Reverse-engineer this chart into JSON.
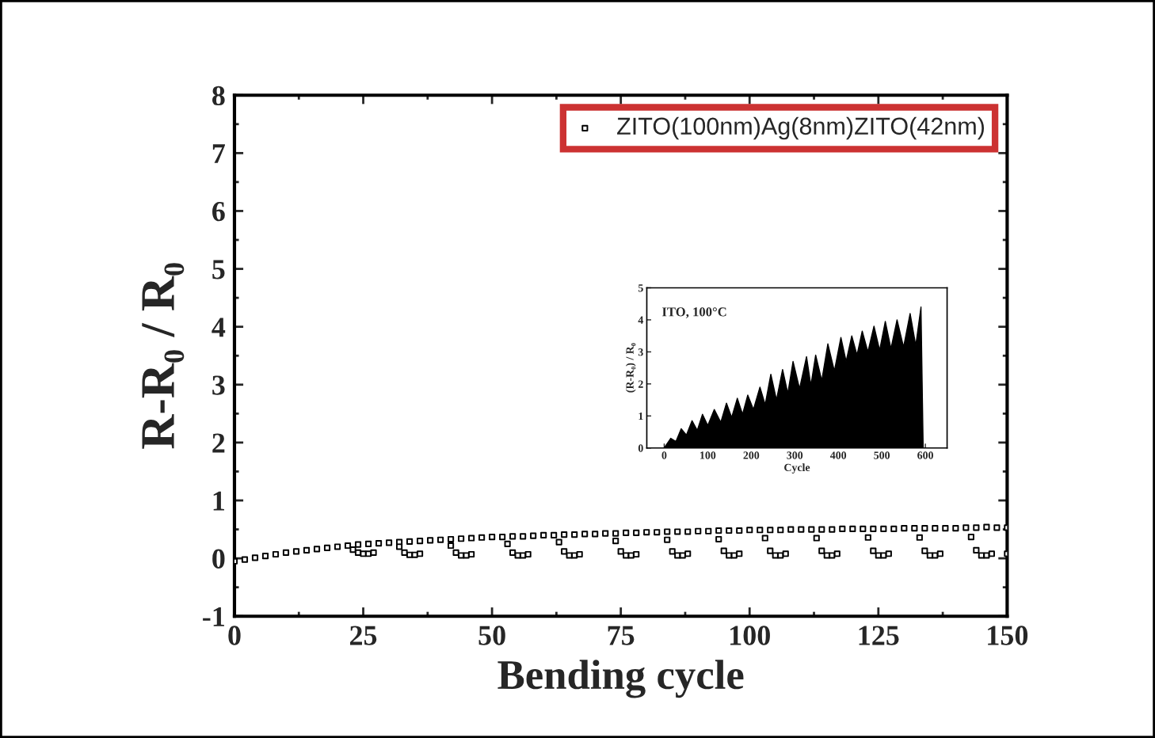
{
  "chart_data": [
    {
      "type": "scatter",
      "xlabel": "Bending cycle",
      "ylabel": "R-R₀ / R₀",
      "xlim": [
        0,
        150
      ],
      "xticks": [
        0,
        25,
        50,
        75,
        100,
        125,
        150
      ],
      "ylim": [
        -1,
        8
      ],
      "yticks": [
        -1,
        0,
        1,
        2,
        3,
        4,
        5,
        6,
        7,
        8
      ],
      "legend": "top right",
      "marker": "square",
      "grid": false,
      "series": [
        {
          "name": "ZITO(100nm)Ag(8nm)ZITO(42nm)",
          "color": "#000000",
          "x": [
            0,
            2,
            4,
            6,
            8,
            10,
            12,
            14,
            16,
            18,
            20,
            22,
            24,
            26,
            28,
            30,
            32,
            34,
            36,
            38,
            40,
            42,
            44,
            46,
            48,
            50,
            52,
            54,
            56,
            58,
            60,
            62,
            64,
            66,
            68,
            70,
            72,
            74,
            76,
            78,
            80,
            82,
            84,
            86,
            88,
            90,
            92,
            94,
            96,
            98,
            100,
            102,
            104,
            106,
            108,
            110,
            112,
            114,
            116,
            118,
            120,
            122,
            124,
            126,
            128,
            130,
            132,
            134,
            136,
            138,
            140,
            142,
            144,
            146,
            148,
            150,
            23,
            24,
            25,
            26,
            27,
            32,
            33,
            34,
            35,
            36,
            42,
            43,
            44,
            45,
            46,
            53,
            54,
            55,
            56,
            57,
            63,
            64,
            65,
            66,
            67,
            74,
            75,
            76,
            77,
            78,
            84,
            85,
            86,
            87,
            88,
            94,
            95,
            96,
            97,
            98,
            103,
            104,
            105,
            106,
            107,
            113,
            114,
            115,
            116,
            117,
            123,
            124,
            125,
            126,
            127,
            133,
            134,
            135,
            136,
            137,
            143,
            144,
            145,
            146,
            147,
            150
          ],
          "values": [
            -0.05,
            -0.02,
            0.01,
            0.04,
            0.07,
            0.1,
            0.12,
            0.14,
            0.16,
            0.18,
            0.2,
            0.22,
            0.24,
            0.25,
            0.26,
            0.27,
            0.28,
            0.29,
            0.3,
            0.31,
            0.32,
            0.33,
            0.34,
            0.35,
            0.36,
            0.37,
            0.37,
            0.38,
            0.38,
            0.39,
            0.4,
            0.4,
            0.41,
            0.41,
            0.42,
            0.42,
            0.43,
            0.43,
            0.44,
            0.44,
            0.45,
            0.45,
            0.46,
            0.46,
            0.46,
            0.47,
            0.47,
            0.48,
            0.48,
            0.48,
            0.49,
            0.49,
            0.49,
            0.49,
            0.5,
            0.5,
            0.5,
            0.5,
            0.5,
            0.51,
            0.51,
            0.51,
            0.51,
            0.51,
            0.51,
            0.52,
            0.52,
            0.52,
            0.52,
            0.52,
            0.52,
            0.53,
            0.53,
            0.54,
            0.53,
            0.53,
            0.15,
            0.1,
            0.08,
            0.08,
            0.1,
            0.2,
            0.1,
            0.06,
            0.06,
            0.08,
            0.22,
            0.1,
            0.05,
            0.05,
            0.07,
            0.25,
            0.1,
            0.05,
            0.05,
            0.07,
            0.28,
            0.12,
            0.05,
            0.05,
            0.07,
            0.3,
            0.12,
            0.05,
            0.05,
            0.07,
            0.32,
            0.12,
            0.05,
            0.05,
            0.08,
            0.33,
            0.13,
            0.05,
            0.05,
            0.08,
            0.35,
            0.13,
            0.05,
            0.05,
            0.08,
            0.35,
            0.13,
            0.05,
            0.05,
            0.08,
            0.36,
            0.13,
            0.05,
            0.05,
            0.08,
            0.36,
            0.13,
            0.05,
            0.05,
            0.08,
            0.37,
            0.14,
            0.05,
            0.05,
            0.08,
            0.08
          ]
        }
      ]
    },
    {
      "type": "area",
      "xlabel": "Cycle",
      "ylabel": "(R-R₀) / R₀",
      "xlim": [
        -40,
        650
      ],
      "xticks": [
        0,
        100,
        200,
        300,
        400,
        500,
        600
      ],
      "ylim": [
        0,
        5
      ],
      "yticks": [
        0,
        1,
        2,
        3,
        4,
        5
      ],
      "grid": false,
      "annotations": [
        "ITO, 100°C"
      ],
      "series": [
        {
          "color": "#000000",
          "x": [
            0,
            15,
            27,
            39,
            51,
            64,
            76,
            88,
            100,
            115,
            130,
            143,
            155,
            168,
            180,
            192,
            205,
            220,
            232,
            245,
            258,
            272,
            284,
            296,
            311,
            327,
            337,
            348,
            362,
            376,
            391,
            406,
            418,
            431,
            443,
            455,
            468,
            482,
            495,
            508,
            521,
            535,
            550,
            565,
            578,
            590,
            595
          ],
          "values": [
            0,
            0.3,
            0.2,
            0.6,
            0.4,
            0.85,
            0.55,
            1.05,
            0.7,
            1.2,
            0.8,
            1.4,
            0.95,
            1.55,
            1.05,
            1.65,
            1.2,
            1.9,
            1.35,
            2.3,
            1.5,
            2.45,
            1.7,
            2.7,
            1.85,
            2.85,
            1.95,
            2.9,
            2.1,
            3.25,
            2.4,
            3.45,
            2.7,
            3.5,
            2.9,
            3.65,
            3.0,
            3.8,
            3.05,
            3.95,
            3.1,
            4.0,
            3.15,
            4.2,
            3.2,
            4.4,
            0
          ]
        }
      ]
    }
  ]
}
